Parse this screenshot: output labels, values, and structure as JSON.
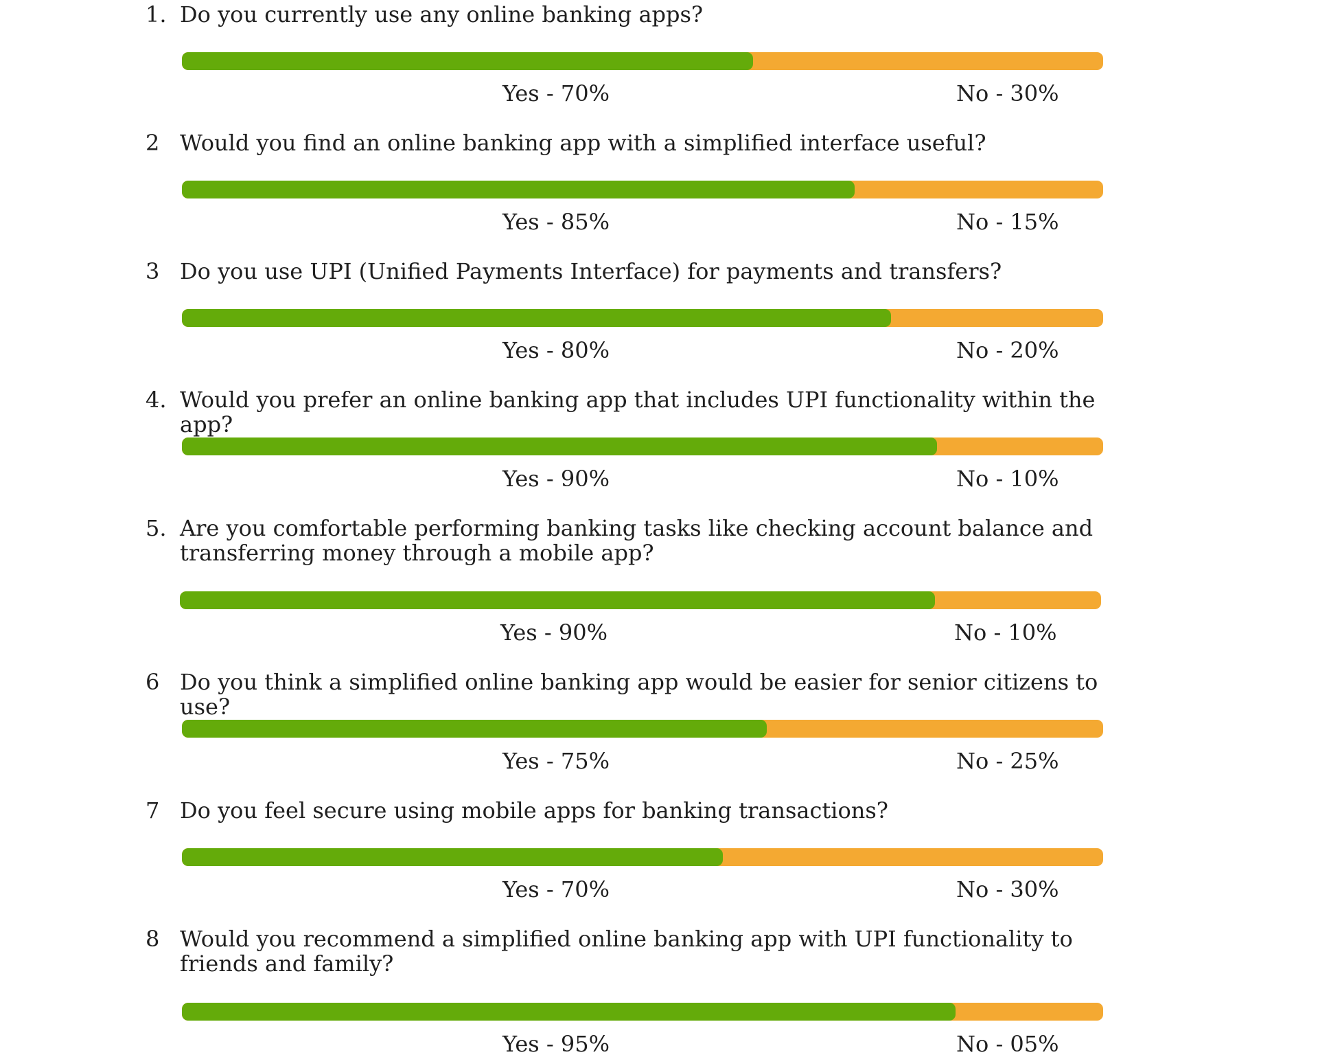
{
  "colors": {
    "yes": "#64ab0a",
    "no": "#f4a932",
    "text": "#1f1f1f"
  },
  "chart_data": {
    "type": "bar",
    "orientation": "horizontal",
    "stacked": true,
    "series": [
      {
        "name": "Yes",
        "color": "#64ab0a"
      },
      {
        "name": "No",
        "color": "#f4a932"
      }
    ],
    "questions": [
      {
        "number": "1.",
        "text": "Do you currently use any online banking apps?",
        "yes": 70,
        "no": 30,
        "yes_label": "Yes - 70%",
        "no_label": "No - 30%"
      },
      {
        "number": "2",
        "text": "Would you find an online banking app with a simplified interface useful?",
        "yes": 85,
        "no": 15,
        "yes_label": "Yes - 85%",
        "no_label": "No - 15%"
      },
      {
        "number": "3",
        "text": "Do you use UPI (Unified Payments Interface) for payments and transfers?",
        "yes": 80,
        "no": 20,
        "yes_label": "Yes - 80%",
        "no_label": "No - 20%"
      },
      {
        "number": "4.",
        "text": "Would you prefer an online banking app that includes UPI functionality within the app?",
        "yes": 90,
        "no": 10,
        "yes_label": "Yes - 90%",
        "no_label": "No - 10%"
      },
      {
        "number": "5.",
        "text": "Are you comfortable performing banking tasks like checking account balance and transferring money through a mobile app?",
        "yes": 90,
        "no": 10,
        "yes_label": "Yes - 90%",
        "no_label": "No - 10%"
      },
      {
        "number": "6",
        "text": "Do you think a simplified online banking app would be easier for senior citizens to use?",
        "yes": 75,
        "no": 25,
        "yes_label": "Yes - 75%",
        "no_label": "No - 25%"
      },
      {
        "number": "7",
        "text": "Do you feel secure using mobile apps for banking transactions?",
        "yes": 70,
        "no": 30,
        "yes_label": "Yes - 70%",
        "no_label": "No - 30%"
      },
      {
        "number": "8",
        "text": "Would you recommend a simplified online banking app with UPI functionality to friends and family?",
        "yes": 95,
        "no": 5,
        "yes_label": "Yes - 95%",
        "no_label": "No - 05%"
      }
    ],
    "value_range": [
      0,
      100
    ]
  }
}
